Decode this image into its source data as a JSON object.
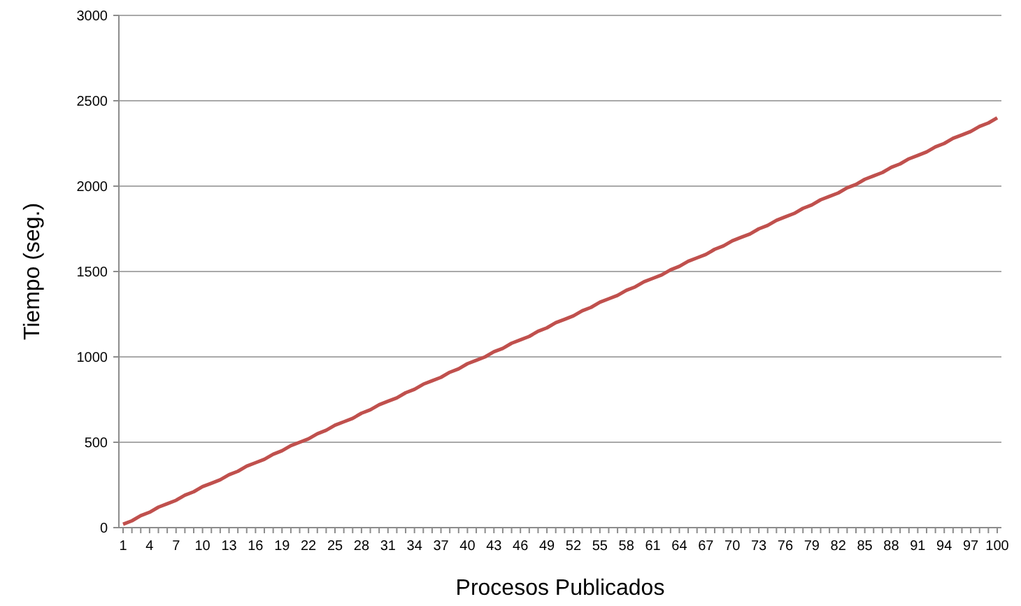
{
  "chart_data": {
    "type": "line",
    "xlabel": "Procesos Publicados",
    "ylabel": "Tiempo (seg.)",
    "categories": [
      "1",
      null,
      null,
      "4",
      null,
      null,
      "7",
      null,
      null,
      "10",
      null,
      null,
      "13",
      null,
      null,
      "16",
      null,
      null,
      "19",
      null,
      null,
      "22",
      null,
      null,
      "25",
      null,
      null,
      "28",
      null,
      null,
      "31",
      null,
      null,
      "34",
      null,
      null,
      "37",
      null,
      null,
      "40",
      null,
      null,
      "43",
      null,
      null,
      "46",
      null,
      null,
      "49",
      null,
      null,
      "52",
      null,
      null,
      "55",
      null,
      null,
      "58",
      null,
      null,
      "61",
      null,
      null,
      "64",
      null,
      null,
      "67",
      null,
      null,
      "70",
      null,
      null,
      "73",
      null,
      null,
      "76",
      null,
      null,
      "79",
      null,
      null,
      "82",
      null,
      null,
      "85",
      null,
      null,
      "88",
      null,
      null,
      "91",
      null,
      null,
      "94",
      null,
      null,
      "97",
      null,
      null,
      "100"
    ],
    "series": [
      {
        "color": "#c0504d",
        "values": [
          20,
          40,
          70,
          90,
          120,
          140,
          160,
          190,
          210,
          240,
          260,
          280,
          310,
          330,
          360,
          380,
          400,
          430,
          450,
          480,
          500,
          520,
          550,
          570,
          600,
          620,
          640,
          670,
          690,
          720,
          740,
          760,
          790,
          810,
          840,
          860,
          880,
          910,
          930,
          960,
          980,
          1000,
          1030,
          1050,
          1080,
          1100,
          1120,
          1150,
          1170,
          1200,
          1220,
          1240,
          1270,
          1290,
          1320,
          1340,
          1360,
          1390,
          1410,
          1440,
          1460,
          1480,
          1510,
          1530,
          1560,
          1580,
          1600,
          1630,
          1650,
          1680,
          1700,
          1720,
          1750,
          1770,
          1800,
          1820,
          1840,
          1870,
          1890,
          1920,
          1940,
          1960,
          1990,
          2010,
          2040,
          2060,
          2080,
          2110,
          2130,
          2160,
          2180,
          2200,
          2230,
          2250,
          2280,
          2300,
          2320,
          2350,
          2370,
          2400
        ]
      }
    ],
    "ylim": [
      0,
      3000
    ],
    "yticks": [
      0,
      500,
      1000,
      1500,
      2000,
      2500,
      3000
    ],
    "grid": "y"
  }
}
